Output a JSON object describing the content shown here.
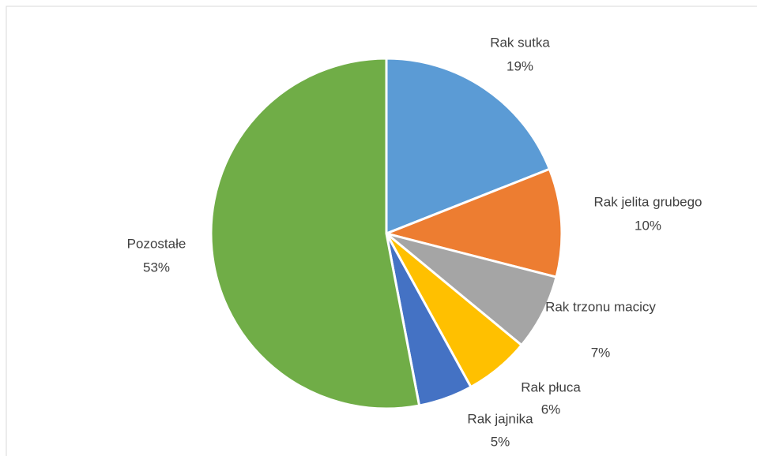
{
  "chart_data": {
    "type": "pie",
    "categories": [
      "Rak sutka",
      "Rak jelita grubego",
      "Rak trzonu macicy",
      "Rak płuca",
      "Rak jajnika",
      "Pozostałe"
    ],
    "values": [
      19,
      10,
      7,
      6,
      5,
      53
    ],
    "value_labels": [
      "19%",
      "10%",
      "7%",
      "6%",
      "5%",
      "53%"
    ],
    "colors": [
      "#5b9bd5",
      "#ed7d31",
      "#a5a5a5",
      "#ffc000",
      "#4472c4",
      "#70ad47"
    ]
  }
}
